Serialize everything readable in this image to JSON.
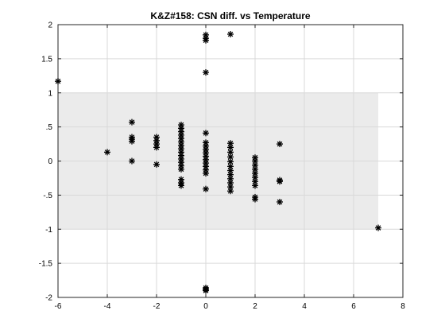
{
  "chart_data": {
    "type": "scatter",
    "title": "K&Z#158: CSN diff. vs Temperature",
    "xlabel": "",
    "ylabel": "",
    "xlim": [
      -6,
      8
    ],
    "ylim": [
      -2,
      2
    ],
    "xticks": [
      -6,
      -4,
      -2,
      0,
      2,
      4,
      6,
      8
    ],
    "yticks": [
      -2,
      -1.5,
      -1,
      -0.5,
      0,
      0.5,
      1,
      1.5,
      2
    ],
    "grid": true,
    "marker": "asterisk",
    "marker_color": "#000000",
    "band": {
      "x": [
        -6,
        7
      ],
      "y": [
        -1,
        1
      ],
      "color": "#ebebeb"
    },
    "series": [
      {
        "points": [
          [
            -6,
            1.17
          ],
          [
            -4,
            0.13
          ],
          [
            -3,
            0.57
          ],
          [
            -3,
            0.35
          ],
          [
            -3,
            0.32
          ],
          [
            -3,
            0.29
          ],
          [
            -3,
            0.0
          ],
          [
            -2,
            0.35
          ],
          [
            -2,
            0.3
          ],
          [
            -2,
            0.25
          ],
          [
            -2,
            0.2
          ],
          [
            -2,
            -0.05
          ],
          [
            -1,
            0.53
          ],
          [
            -1,
            0.48
          ],
          [
            -1,
            0.43
          ],
          [
            -1,
            0.38
          ],
          [
            -1,
            0.33
          ],
          [
            -1,
            0.28
          ],
          [
            -1,
            0.23
          ],
          [
            -1,
            0.18
          ],
          [
            -1,
            0.13
          ],
          [
            -1,
            0.08
          ],
          [
            -1,
            0.03
          ],
          [
            -1,
            -0.02
          ],
          [
            -1,
            -0.07
          ],
          [
            -1,
            -0.12
          ],
          [
            -1,
            -0.27
          ],
          [
            -1,
            -0.32
          ],
          [
            -1,
            -0.36
          ],
          [
            0,
            1.85
          ],
          [
            0,
            1.8
          ],
          [
            0,
            1.77
          ],
          [
            0,
            1.3
          ],
          [
            0,
            0.41
          ],
          [
            0,
            0.27
          ],
          [
            0,
            0.22
          ],
          [
            0,
            0.17
          ],
          [
            0,
            0.12
          ],
          [
            0,
            0.07
          ],
          [
            0,
            0.02
          ],
          [
            0,
            -0.03
          ],
          [
            0,
            -0.08
          ],
          [
            0,
            -0.13
          ],
          [
            0,
            -0.18
          ],
          [
            0,
            -0.41
          ],
          [
            0,
            -1.86
          ],
          [
            0,
            -1.88
          ],
          [
            0,
            -1.9
          ],
          [
            1,
            1.86
          ],
          [
            1,
            0.26
          ],
          [
            1,
            0.2
          ],
          [
            1,
            0.13
          ],
          [
            1,
            0.06
          ],
          [
            1,
            -0.01
          ],
          [
            1,
            -0.08
          ],
          [
            1,
            -0.14
          ],
          [
            1,
            -0.2
          ],
          [
            1,
            -0.26
          ],
          [
            1,
            -0.32
          ],
          [
            1,
            -0.38
          ],
          [
            1,
            -0.44
          ],
          [
            2,
            0.05
          ],
          [
            2,
            0.0
          ],
          [
            2,
            -0.06
          ],
          [
            2,
            -0.12
          ],
          [
            2,
            -0.18
          ],
          [
            2,
            -0.24
          ],
          [
            2,
            -0.3
          ],
          [
            2,
            -0.36
          ],
          [
            2,
            -0.53
          ],
          [
            2,
            -0.56
          ],
          [
            3,
            0.25
          ],
          [
            3,
            -0.28
          ],
          [
            3,
            -0.3
          ],
          [
            3,
            -0.6
          ],
          [
            7,
            -0.98
          ]
        ]
      }
    ]
  }
}
